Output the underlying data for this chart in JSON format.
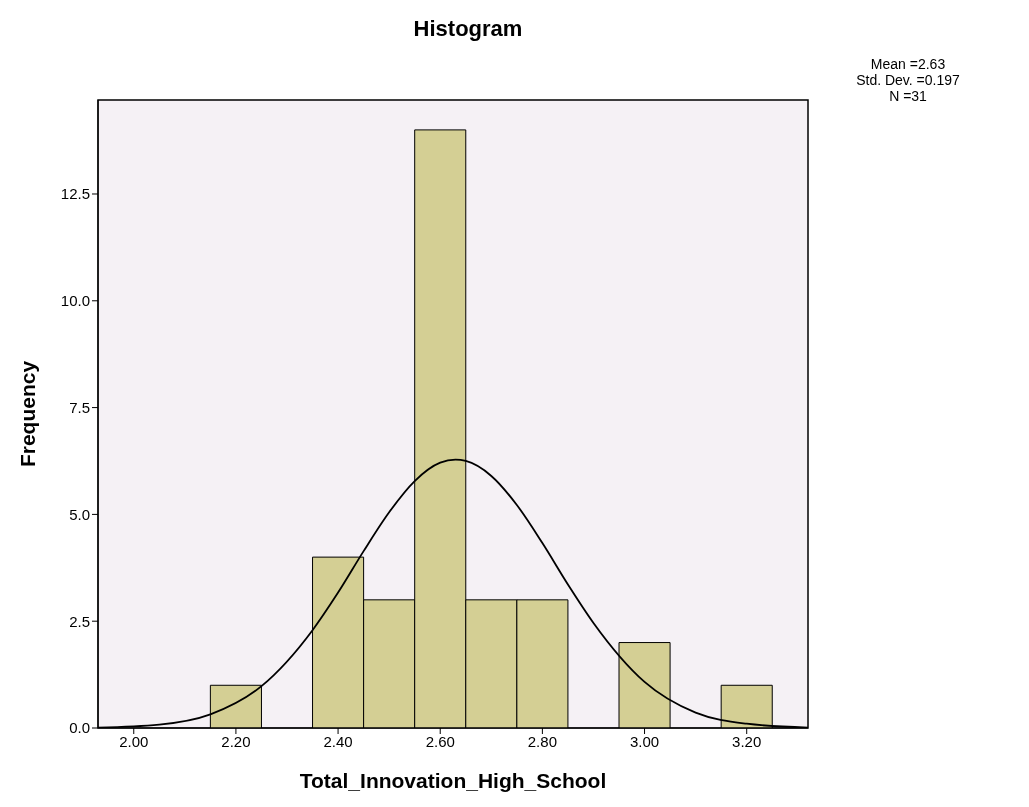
{
  "chart_data": {
    "type": "histogram",
    "title": "Histogram",
    "xlabel": "Total_Innovation_High_School",
    "ylabel": "Frequency",
    "bins": [
      2.15,
      2.25,
      2.35,
      2.45,
      2.55,
      2.65,
      2.75,
      2.85,
      2.95,
      3.05,
      3.15,
      3.25
    ],
    "values": [
      1,
      0,
      4,
      3,
      14,
      3,
      3,
      0,
      2,
      0,
      1
    ],
    "color": "#d4cf94",
    "series": [
      {
        "type": "line",
        "color": "#000000",
        "x": [
          1.93,
          2.05,
          2.15,
          2.25,
          2.35,
          2.4,
          2.45,
          2.5,
          2.55,
          2.6,
          2.63,
          2.65,
          2.7,
          2.75,
          2.8,
          2.85,
          2.9,
          3.0,
          3.1,
          3.2,
          3.32
        ],
        "values": [
          0.01,
          0.08,
          0.32,
          0.98,
          2.29,
          3.17,
          4.14,
          5.05,
          5.78,
          6.21,
          6.28,
          6.25,
          5.9,
          5.22,
          4.33,
          3.36,
          2.46,
          1.08,
          0.36,
          0.1,
          0.01
        ]
      }
    ],
    "xlim": [
      1.93,
      3.32
    ],
    "ylim": [
      0,
      14.7
    ],
    "xticks": [
      {
        "value": 2.0,
        "label": "2.00"
      },
      {
        "value": 2.2,
        "label": "2.20"
      },
      {
        "value": 2.4,
        "label": "2.40"
      },
      {
        "value": 2.6,
        "label": "2.60"
      },
      {
        "value": 2.8,
        "label": "2.80"
      },
      {
        "value": 3.0,
        "label": "3.00"
      },
      {
        "value": 3.2,
        "label": "3.20"
      }
    ],
    "yticks": [
      {
        "value": 0,
        "label": "0.0"
      },
      2.5,
      {
        "value": 5,
        "label": "5.0"
      },
      7.5,
      {
        "value": 10,
        "label": "10.0"
      },
      12.5
    ],
    "grid": false,
    "legend": false,
    "marker": "none",
    "line_style": "solid",
    "annotations": [
      "Mean =2.63",
      "Std. Dev. =0.197",
      "N =31"
    ]
  }
}
